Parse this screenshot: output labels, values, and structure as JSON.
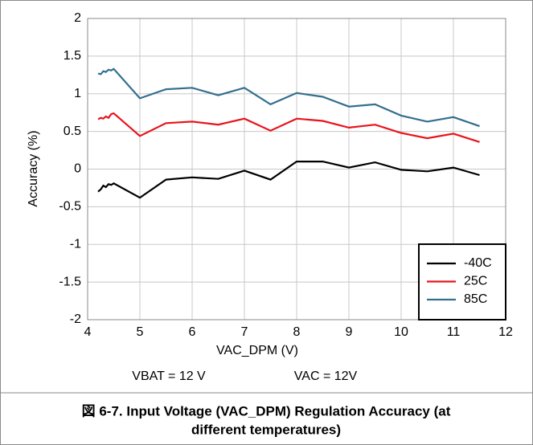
{
  "chart_data": {
    "type": "line",
    "x": [
      4.2,
      4.25,
      4.3,
      4.35,
      4.4,
      4.45,
      4.5,
      5,
      5.5,
      6,
      6.5,
      7,
      7.5,
      8,
      8.5,
      9,
      9.5,
      10,
      10.5,
      11,
      11.5
    ],
    "series": [
      {
        "name": "-40C",
        "color": "#000000",
        "values": [
          -0.3,
          -0.27,
          -0.22,
          -0.24,
          -0.2,
          -0.21,
          -0.19,
          -0.38,
          -0.14,
          -0.11,
          -0.13,
          -0.02,
          -0.14,
          0.1,
          0.1,
          0.02,
          0.09,
          -0.01,
          -0.03,
          0.02,
          -0.08
        ]
      },
      {
        "name": "25C",
        "color": "#e8141c",
        "values": [
          0.66,
          0.68,
          0.67,
          0.7,
          0.68,
          0.73,
          0.74,
          0.44,
          0.61,
          0.63,
          0.59,
          0.67,
          0.51,
          0.67,
          0.64,
          0.55,
          0.59,
          0.48,
          0.41,
          0.47,
          0.36
        ]
      },
      {
        "name": "85C",
        "color": "#336f8e",
        "values": [
          1.27,
          1.26,
          1.3,
          1.29,
          1.32,
          1.31,
          1.33,
          0.94,
          1.06,
          1.08,
          0.98,
          1.08,
          0.86,
          1.01,
          0.96,
          0.83,
          0.86,
          0.71,
          0.63,
          0.69,
          0.57
        ]
      }
    ],
    "xlabel": "VAC_DPM (V)",
    "ylabel": "Accuracy (%)",
    "xlim": [
      4,
      12
    ],
    "xticks": [
      4,
      5,
      6,
      7,
      8,
      9,
      10,
      11,
      12
    ],
    "ylim": [
      -2,
      2
    ],
    "yticks": [
      -2,
      -1.5,
      -1,
      -0.5,
      0,
      0.5,
      1,
      1.5,
      2
    ],
    "grid": true,
    "legend": "lower right",
    "annotations": [
      "VBAT = 12 V",
      "VAC = 12V"
    ],
    "caption": [
      "図 6-7. Input Voltage (VAC_DPM) Regulation Accuracy (at",
      "different temperatures)"
    ]
  }
}
